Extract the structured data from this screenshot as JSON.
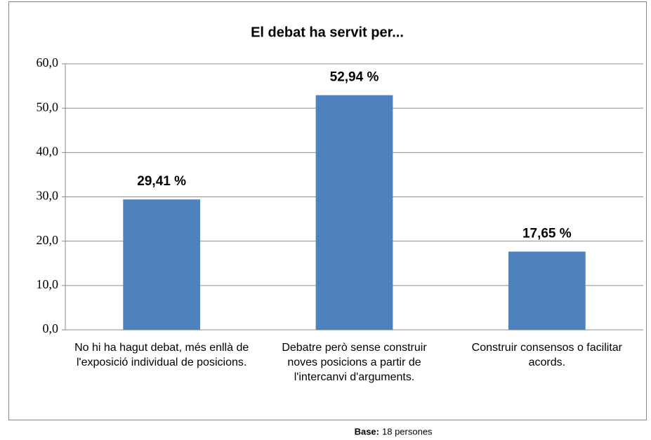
{
  "chart_data": {
    "type": "bar",
    "title": "El debat ha servit per...",
    "categories": [
      "No hi ha hagut debat, més enllà de l'exposició individual de posicions.",
      "Debatre però sense construir noves posicions a partir de l'intercanvi d'arguments.",
      "Construir consensos o facilitar acords."
    ],
    "values": [
      29.41,
      52.94,
      17.65
    ],
    "value_labels": [
      "29,41 %",
      "52,94 %",
      "17,65 %"
    ],
    "color": "#4f81bd",
    "ylim": [
      0,
      60
    ],
    "yticks": [
      {
        "value": 0,
        "label": "0,0"
      },
      {
        "value": 10,
        "label": "10,0"
      },
      {
        "value": 20,
        "label": "20,0"
      },
      {
        "value": 30,
        "label": "30,0"
      },
      {
        "value": 40,
        "label": "40,0"
      },
      {
        "value": 50,
        "label": "50,0"
      },
      {
        "value": 60,
        "label": "60,0"
      }
    ],
    "grid": true,
    "footnote": {
      "label": "Base:",
      "text": "18 persones"
    }
  }
}
